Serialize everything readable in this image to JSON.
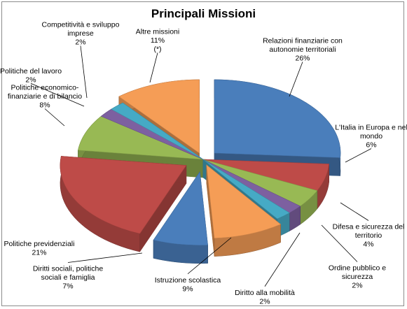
{
  "chart_data": {
    "type": "pie",
    "title": "Principali Missioni",
    "colors": {
      "Relazioni": "#4a7ebb",
      "Italia": "#be4b48",
      "Difesa": "#98b954",
      "Ordine": "#7d60a0",
      "Mobilita": "#46aac5",
      "Istruzione": "#f59d56",
      "Diritti": "#4a7ebb",
      "Previdenziali": "#be4b48",
      "Economico": "#98b954",
      "Lavoro": "#7d60a0",
      "Competitivita": "#46aac5",
      "Altre": "#f59d56"
    },
    "slices": [
      {
        "key": "Relazioni",
        "label": "Relazioni finanziarie con autonomie territoriali",
        "value": 26,
        "lines": [
          "Relazioni finanziarie con",
          "autonomie territoriali",
          "26%"
        ]
      },
      {
        "key": "Italia",
        "label": "L'Italia in Europa e nel mondo",
        "value": 6,
        "lines": [
          "L'Italia in Europa e nel",
          "mondo",
          "6%"
        ]
      },
      {
        "key": "Difesa",
        "label": "Difesa e sicurezza del territorio",
        "value": 4,
        "lines": [
          "Difesa e sicurezza del",
          "territorio",
          "4%"
        ]
      },
      {
        "key": "Ordine",
        "label": "Ordine pubblico e sicurezza",
        "value": 2,
        "lines": [
          "Ordine pubblico e",
          "sicurezza",
          "2%"
        ]
      },
      {
        "key": "Mobilita",
        "label": "Diritto alla mobilità",
        "value": 2,
        "lines": [
          "Diritto alla mobilità",
          "2%"
        ]
      },
      {
        "key": "Istruzione",
        "label": "Istruzione scolastica",
        "value": 9,
        "lines": [
          "Istruzione scolastica",
          "9%"
        ]
      },
      {
        "key": "Diritti",
        "label": "Diritti sociali, politiche sociali e famiglia",
        "value": 7,
        "lines": [
          "Diritti sociali, politiche",
          "sociali e famiglia",
          "7%"
        ]
      },
      {
        "key": "Previdenziali",
        "label": "Politiche previdenziali",
        "value": 21,
        "lines": [
          "Politiche previdenziali",
          "21%"
        ]
      },
      {
        "key": "Economico",
        "label": "Politiche economico-finanziarie e di bilancio",
        "value": 8,
        "lines": [
          "Politiche economico-",
          "finanziarie e di bilancio",
          "8%"
        ]
      },
      {
        "key": "Lavoro",
        "label": "Politiche del lavoro",
        "value": 2,
        "lines": [
          "Politiche del lavoro",
          "2%"
        ]
      },
      {
        "key": "Competitivita",
        "label": "Competitività e sviluppo imprese",
        "value": 2,
        "lines": [
          "Competitività e sviluppo",
          "imprese",
          "2%"
        ]
      },
      {
        "key": "Altre",
        "label": "Altre missioni",
        "value": 11,
        "lines": [
          "Altre missioni",
          "11%",
          "(*)"
        ]
      }
    ]
  }
}
